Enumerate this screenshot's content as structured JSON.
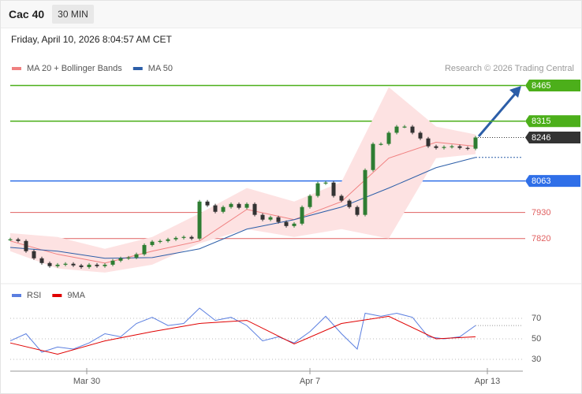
{
  "header": {
    "title": "Cac 40",
    "interval": "30 MIN",
    "timestamp": "Friday, April 10, 2026 8:04:57 AM CET",
    "credit": "Research © 2026 Trading Central"
  },
  "chart_data": [
    {
      "type": "candlestick",
      "xlim": [
        0,
        65
      ],
      "ylim": [
        7650,
        8490
      ],
      "up_color": "#2e7d32",
      "down_color": "#333333",
      "x": [
        0,
        1,
        2,
        3,
        4,
        5,
        6,
        7,
        8,
        9,
        10,
        11,
        12,
        13,
        14,
        15,
        16,
        17,
        18,
        19,
        20,
        21,
        22,
        23,
        24,
        25,
        26,
        27,
        28,
        29,
        30,
        31,
        32,
        33,
        34,
        35,
        36,
        37,
        38,
        39,
        40,
        41,
        42,
        43,
        44,
        45,
        46,
        47,
        48,
        49,
        50,
        51,
        52,
        53,
        54,
        55,
        56,
        57,
        58,
        59
      ],
      "values": [
        7817,
        7810,
        7767,
        7737,
        7717,
        7704,
        7710,
        7714,
        7707,
        7700,
        7710,
        7704,
        7710,
        7727,
        7737,
        7740,
        7754,
        7793,
        7807,
        7810,
        7817,
        7823,
        7827,
        7820,
        7976,
        7960,
        7933,
        7953,
        7966,
        7950,
        7966,
        7920,
        7900,
        7910,
        7890,
        7873,
        7883,
        7953,
        8000,
        8053,
        8056,
        8000,
        7980,
        7953,
        7920,
        8109,
        8219,
        8219,
        8266,
        8292,
        8292,
        8266,
        8242,
        8209,
        8202,
        8206,
        8209,
        8202,
        8199,
        8246
      ],
      "series": [
        {
          "name": "MA 20 + Bollinger Bands",
          "color": "#f08080",
          "band_color": "#fde2e2",
          "x": [
            0,
            6,
            12,
            18,
            24,
            30,
            36,
            42,
            48,
            54,
            59
          ],
          "values": [
            7810,
            7754,
            7717,
            7767,
            7810,
            7943,
            7900,
            7976,
            8159,
            8226,
            8209
          ],
          "upper": [
            7843,
            7827,
            7777,
            7827,
            7926,
            8033,
            7976,
            8059,
            8458,
            8292,
            8259
          ],
          "lower": [
            7767,
            7694,
            7677,
            7710,
            7800,
            7860,
            7827,
            7860,
            7820,
            8159,
            8176
          ]
        },
        {
          "name": "MA 50",
          "color": "#2c5ea8",
          "x": [
            0,
            6,
            12,
            18,
            24,
            30,
            36,
            42,
            48,
            54,
            59
          ],
          "values": [
            7783,
            7767,
            7737,
            7740,
            7777,
            7860,
            7900,
            7953,
            8033,
            8119,
            8162
          ]
        }
      ],
      "levels": [
        {
          "value": 8465,
          "color": "#4caf1a",
          "style": "tag"
        },
        {
          "value": 8315,
          "color": "#4caf1a",
          "style": "tag"
        },
        {
          "value": 8246,
          "color": "#333333",
          "style": "tag"
        },
        {
          "value": 8063,
          "color": "#2f6fe8",
          "style": "tag"
        },
        {
          "value": 7930,
          "color": "#e06060",
          "style": "text"
        },
        {
          "value": 7820,
          "color": "#e06060",
          "style": "text"
        }
      ]
    },
    {
      "type": "line",
      "xlim": [
        0,
        65
      ],
      "ylim": [
        20,
        85
      ],
      "yticks": [
        30,
        50,
        70
      ],
      "xticks": [
        {
          "value": 9.7,
          "label": "Mar 30"
        },
        {
          "value": 38,
          "label": "Apr 7"
        },
        {
          "value": 60.5,
          "label": "Apr 13"
        }
      ],
      "series": [
        {
          "name": "RSI",
          "color": "#5b7fe0",
          "x": [
            0,
            2,
            4,
            6,
            8,
            10,
            12,
            14,
            16,
            18,
            20,
            22,
            24,
            26,
            28,
            30,
            32,
            34,
            36,
            38,
            40,
            42,
            44,
            45,
            47,
            49,
            51,
            53,
            55,
            57,
            59
          ],
          "values": [
            48,
            55,
            37,
            42,
            40,
            46,
            55,
            52,
            65,
            71,
            63,
            65,
            80,
            68,
            71,
            63,
            48,
            52,
            46,
            57,
            72,
            55,
            40,
            75,
            72,
            75,
            71,
            52,
            50,
            52,
            63
          ]
        },
        {
          "name": "9MA",
          "color": "#e00000",
          "x": [
            0,
            6,
            12,
            18,
            24,
            30,
            36,
            42,
            48,
            54,
            59
          ],
          "values": [
            46,
            35,
            48,
            57,
            65,
            68,
            45,
            65,
            72,
            50,
            52
          ]
        }
      ]
    }
  ]
}
